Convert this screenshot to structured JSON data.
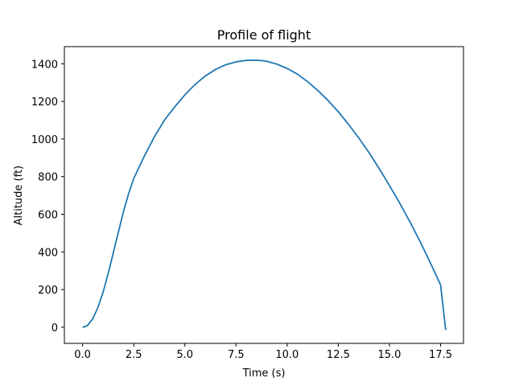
{
  "chart_data": {
    "type": "line",
    "title": "Profile of flight",
    "xlabel": "Time (s)",
    "ylabel": "Altitude (ft)",
    "xlim": [
      -0.89,
      18.62
    ],
    "ylim": [
      -86,
      1491
    ],
    "xticks": [
      0.0,
      2.5,
      5.0,
      7.5,
      10.0,
      12.5,
      15.0,
      17.5
    ],
    "xtick_labels": [
      "0.0",
      "2.5",
      "5.0",
      "7.5",
      "10.0",
      "12.5",
      "15.0",
      "17.5"
    ],
    "yticks": [
      0,
      200,
      400,
      600,
      800,
      1000,
      1200,
      1400
    ],
    "ytick_labels": [
      "0",
      "200",
      "400",
      "600",
      "800",
      "1000",
      "1200",
      "1400"
    ],
    "grid": false,
    "colors": {
      "series": "#1f77b4"
    },
    "series": [
      {
        "x": [
          0.0,
          0.1,
          0.25,
          0.5,
          0.75,
          1.0,
          1.25,
          1.5,
          1.75,
          2.0,
          2.25,
          2.5,
          3.0,
          3.5,
          4.0,
          4.5,
          5.0,
          5.5,
          6.0,
          6.5,
          7.0,
          7.5,
          8.0,
          8.4,
          8.75,
          9.0,
          9.5,
          10.0,
          10.5,
          11.0,
          11.5,
          12.0,
          12.5,
          13.0,
          13.5,
          14.0,
          14.5,
          15.0,
          15.5,
          16.0,
          16.5,
          17.0,
          17.5,
          17.75
        ],
        "y": [
          0,
          2,
          10,
          45,
          105,
          185,
          285,
          395,
          505,
          615,
          710,
          790,
          905,
          1010,
          1100,
          1170,
          1235,
          1290,
          1335,
          1370,
          1395,
          1410,
          1418,
          1419,
          1417,
          1413,
          1398,
          1375,
          1345,
          1305,
          1258,
          1205,
          1145,
          1078,
          1006,
          928,
          843,
          753,
          660,
          560,
          455,
          342,
          225,
          -15
        ]
      }
    ]
  }
}
